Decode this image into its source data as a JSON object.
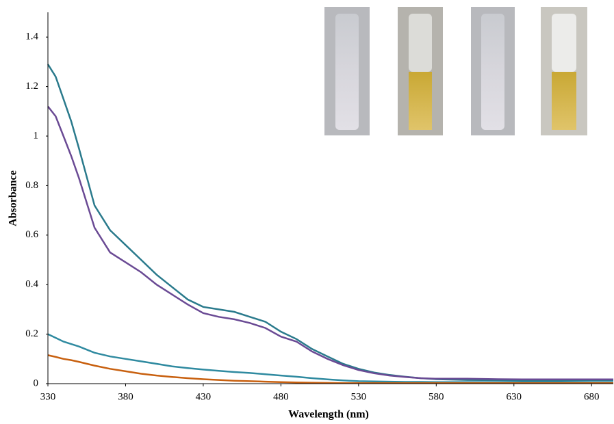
{
  "chart_data": {
    "type": "line",
    "x_label": "Wavelength (nm)",
    "y_label": "Absorbance",
    "x": [
      330,
      335,
      340,
      345,
      350,
      360,
      370,
      380,
      390,
      400,
      410,
      420,
      430,
      440,
      450,
      460,
      470,
      480,
      490,
      500,
      510,
      520,
      530,
      540,
      550,
      560,
      570,
      580,
      600,
      620,
      640,
      660,
      680,
      694
    ],
    "series": [
      {
        "color": "#2a7a8c",
        "values": [
          1.29,
          1.24,
          1.15,
          1.06,
          0.95,
          0.72,
          0.62,
          0.56,
          0.5,
          0.44,
          0.39,
          0.34,
          0.31,
          0.3,
          0.29,
          0.27,
          0.25,
          0.21,
          0.18,
          0.14,
          0.11,
          0.08,
          0.06,
          0.045,
          0.035,
          0.028,
          0.022,
          0.018,
          0.015,
          0.014,
          0.013,
          0.013,
          0.014,
          0.014
        ]
      },
      {
        "color": "#6a4a94",
        "values": [
          1.12,
          1.08,
          1.0,
          0.92,
          0.83,
          0.63,
          0.53,
          0.49,
          0.45,
          0.4,
          0.36,
          0.32,
          0.285,
          0.27,
          0.26,
          0.245,
          0.225,
          0.19,
          0.17,
          0.13,
          0.1,
          0.075,
          0.055,
          0.042,
          0.033,
          0.027,
          0.022,
          0.02,
          0.02,
          0.018,
          0.017,
          0.017,
          0.017,
          0.017
        ]
      },
      {
        "color": "#2f8aa0",
        "values": [
          0.2,
          0.185,
          0.17,
          0.16,
          0.15,
          0.125,
          0.11,
          0.1,
          0.09,
          0.08,
          0.07,
          0.063,
          0.057,
          0.052,
          0.047,
          0.043,
          0.038,
          0.033,
          0.028,
          0.022,
          0.017,
          0.013,
          0.01,
          0.009,
          0.008,
          0.007,
          0.007,
          0.006,
          0.006,
          0.006,
          0.006,
          0.006,
          0.006,
          0.006
        ]
      },
      {
        "color": "#c8600f",
        "values": [
          0.115,
          0.108,
          0.1,
          0.095,
          0.088,
          0.073,
          0.06,
          0.05,
          0.04,
          0.033,
          0.027,
          0.022,
          0.018,
          0.015,
          0.012,
          0.01,
          0.008,
          0.006,
          0.005,
          0.004,
          0.003,
          0.002,
          0.002,
          0.002,
          0.002,
          0.002,
          0.002,
          0.002,
          0.002,
          0.002,
          0.002,
          0.002,
          0.002,
          0.002
        ]
      }
    ],
    "xlim": [
      330,
      694
    ],
    "xticks": [
      330,
      380,
      430,
      480,
      530,
      580,
      630,
      680
    ],
    "ylim": [
      0,
      1.5
    ],
    "yticks": [
      0,
      0.2,
      0.4,
      0.6,
      0.8,
      1,
      1.2,
      1.4
    ],
    "grid": false
  }
}
